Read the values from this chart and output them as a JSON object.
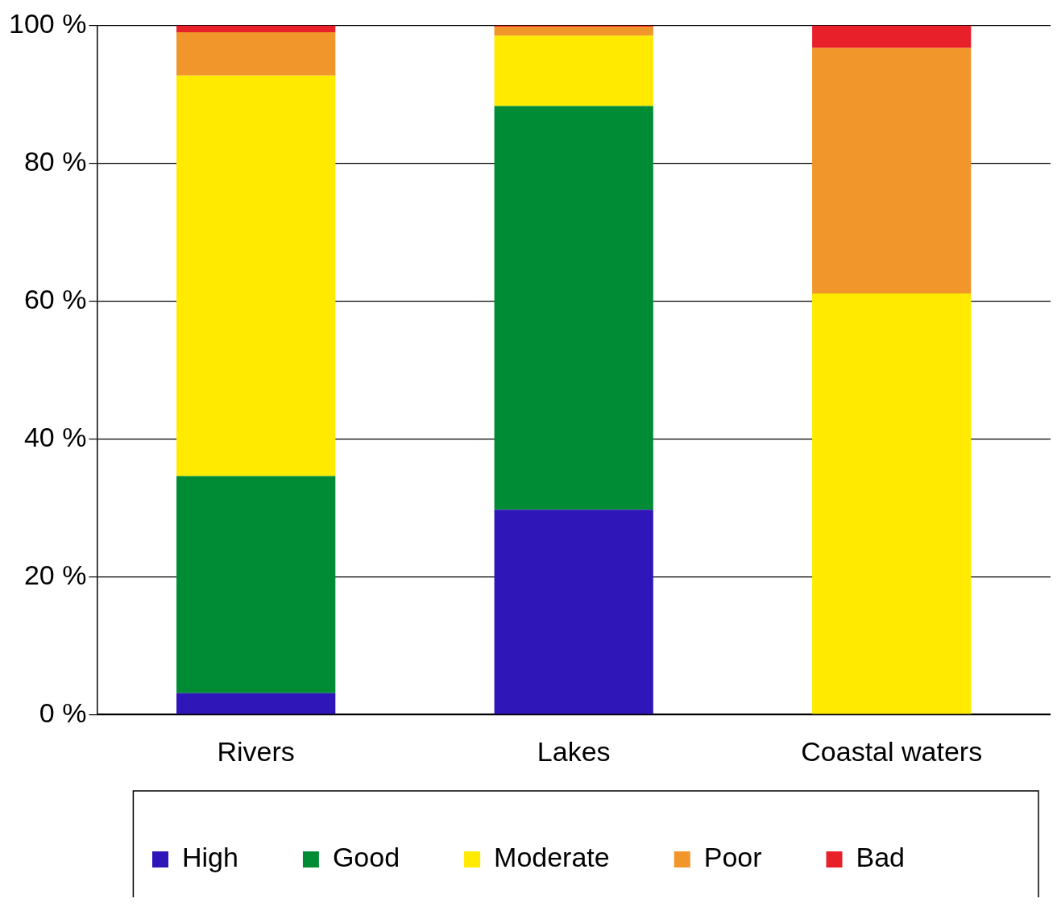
{
  "chart_data": {
    "type": "bar",
    "stacked": true,
    "categories": [
      "Rivers",
      "Lakes",
      "Coastal waters"
    ],
    "series": [
      {
        "name": "High",
        "color": "#2e16b8",
        "values": [
          3.1,
          29.7,
          0
        ]
      },
      {
        "name": "Good",
        "color": "#008c35",
        "values": [
          31.5,
          58.6,
          0
        ]
      },
      {
        "name": "Moderate",
        "color": "#ffea00",
        "values": [
          58.1,
          10.2,
          61.1
        ]
      },
      {
        "name": "Poor",
        "color": "#f0962a",
        "values": [
          6.3,
          1.3,
          35.6
        ]
      },
      {
        "name": "Bad",
        "color": "#e8202a",
        "values": [
          1.0,
          0.2,
          3.3
        ]
      }
    ],
    "ylim": [
      0,
      100
    ],
    "yticks": [
      {
        "value": 0,
        "label": "0 %"
      },
      {
        "value": 20,
        "label": "20 %"
      },
      {
        "value": 40,
        "label": "40 %"
      },
      {
        "value": 60,
        "label": "60 %"
      },
      {
        "value": 80,
        "label": "80 %"
      },
      {
        "value": 100,
        "label": "100 %"
      }
    ],
    "grid": "y",
    "legend": "bottom"
  }
}
